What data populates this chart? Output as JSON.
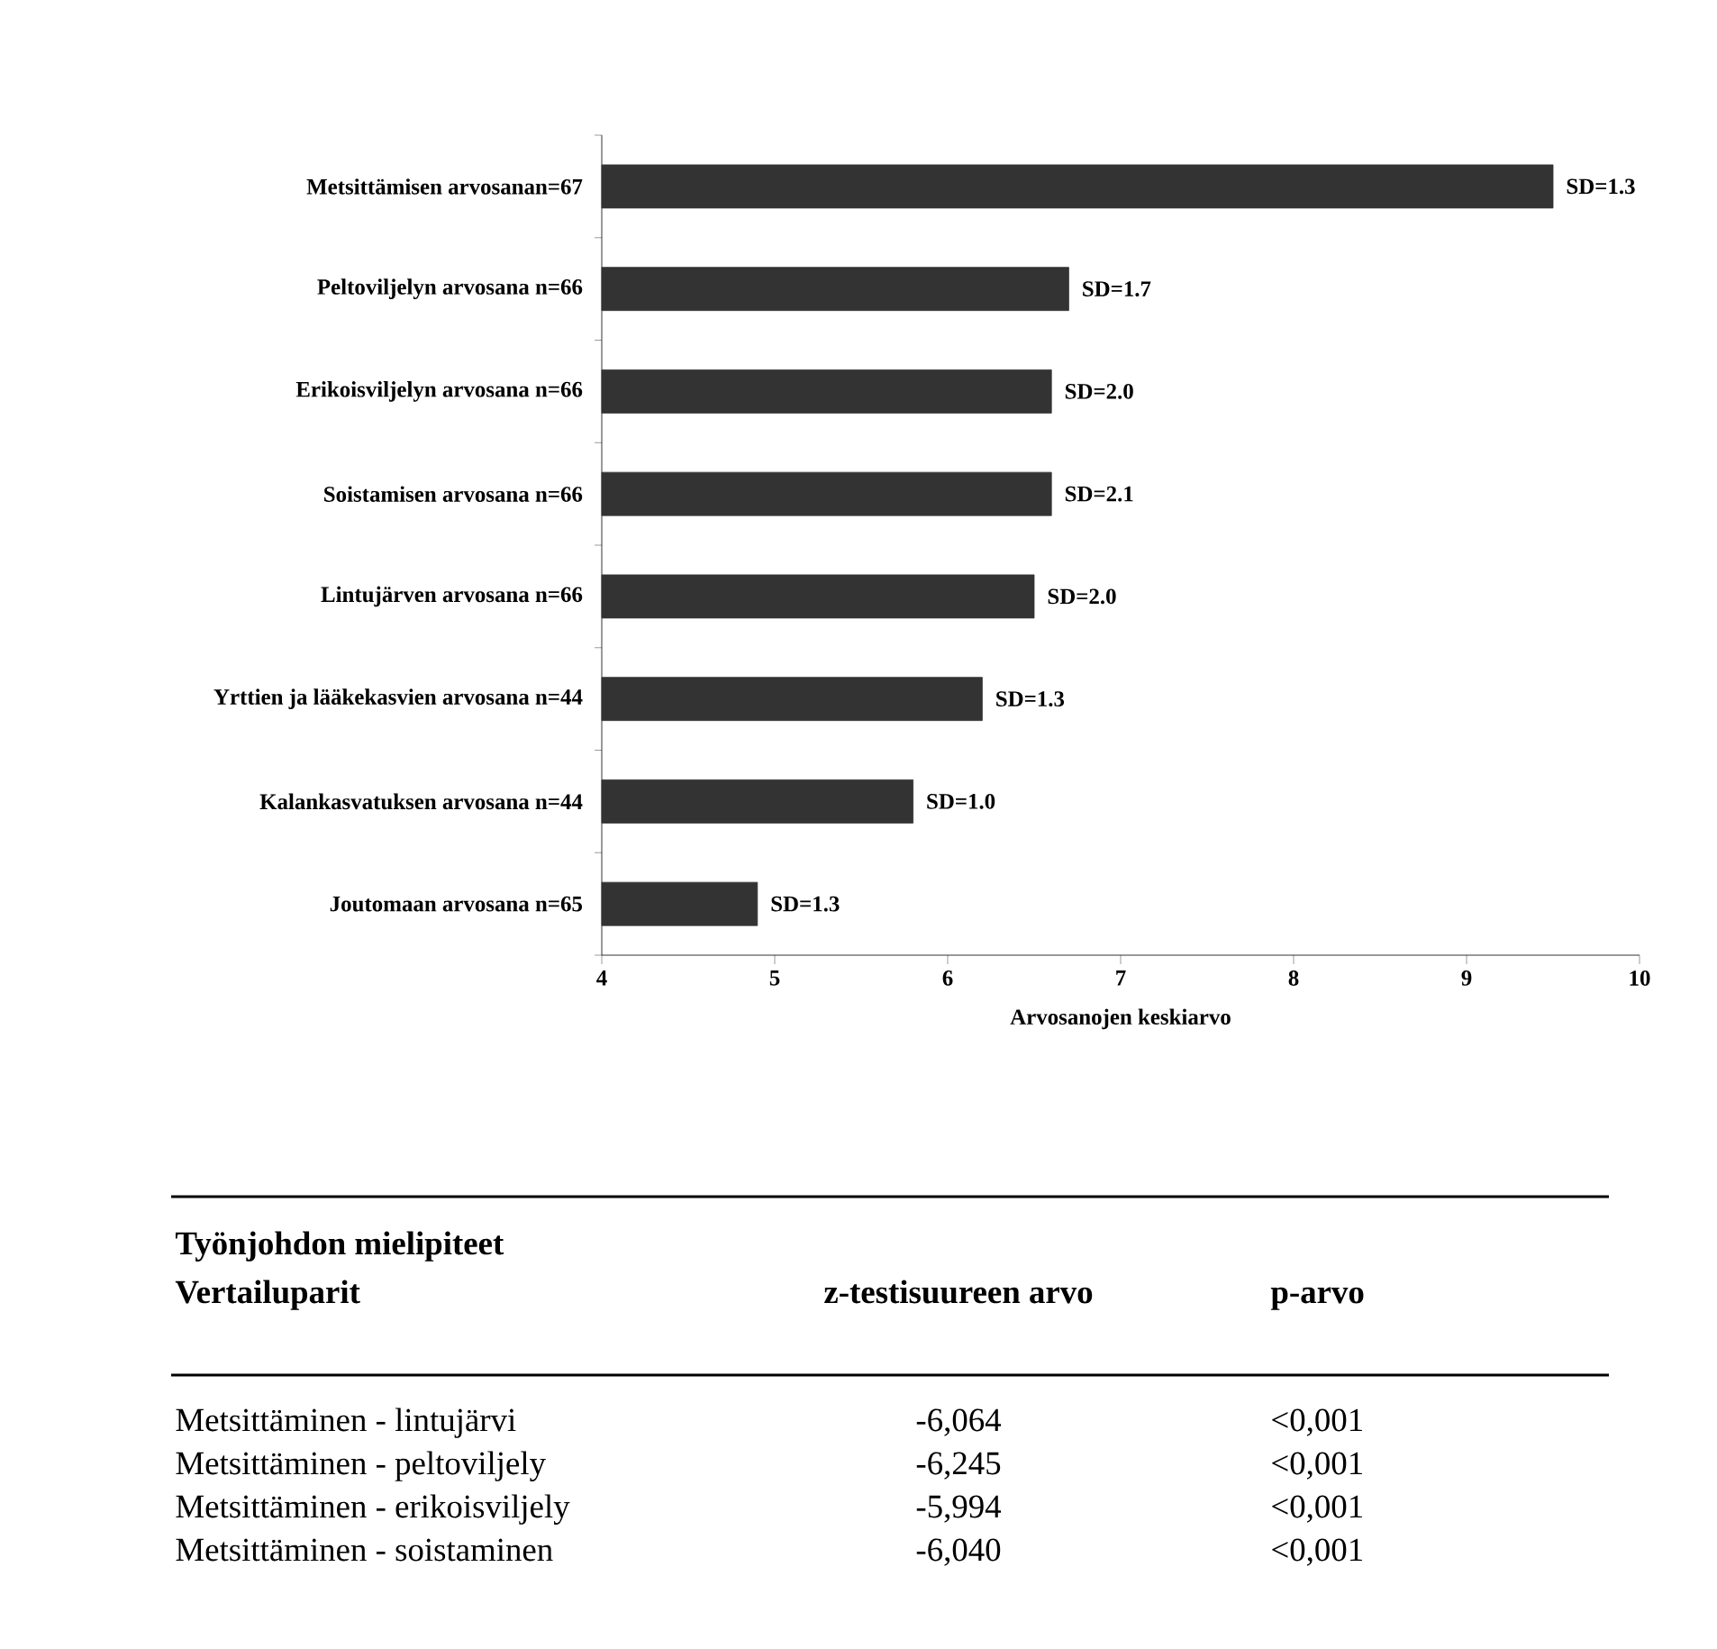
{
  "chart_data": [
    {
      "type": "bar",
      "orientation": "horizontal",
      "xlabel": "Arvosanojen keskiarvo",
      "categories": [
        "Metsittämisen arvosanan=67",
        "Peltoviljelyn arvosana n=66",
        "Erikoisviljelyn arvosana n=66",
        "Soistamisen arvosana n=66",
        "Lintujärven arvosana n=66",
        "Yrttien ja lääkekasvien arvosana n=44",
        "Kalankasvatuksen arvosana n=44",
        "Joutomaan arvosana n=65"
      ],
      "values": [
        9.5,
        6.7,
        6.6,
        6.6,
        6.5,
        6.2,
        5.8,
        4.9
      ],
      "annotations": [
        {
          "text": "SD=1.3",
          "x": 9.5,
          "y": "Metsittämisen arvosanan=67"
        },
        {
          "text": "SD=1.7",
          "x": 6.7,
          "y": "Peltoviljelyn arvosana n=66"
        },
        {
          "text": "SD=2.0",
          "x": 6.6,
          "y": "Erikoisviljelyn arvosana n=66"
        },
        {
          "text": "SD=2.1",
          "x": 6.6,
          "y": "Soistamisen arvosana n=66"
        },
        {
          "text": "SD=2.0",
          "x": 6.5,
          "y": "Lintujärven arvosana n=66"
        },
        {
          "text": "SD=1.3",
          "x": 6.2,
          "y": "Yrttien ja lääkekasvien arvosana n=44"
        },
        {
          "text": "SD=1.0",
          "x": 5.8,
          "y": "Kalankasvatuksen arvosana n=44"
        },
        {
          "text": "SD=1.3",
          "x": 4.9,
          "y": "Joutomaan arvosana n=65"
        }
      ],
      "color": "#333333",
      "xlim": [
        4,
        10
      ],
      "xticks": [
        4,
        5,
        6,
        7,
        8,
        9,
        10
      ]
    },
    {
      "type": "other",
      "annotations": [
        "Työnjohdon mielipiteet",
        "Vertailuparit",
        "z-testisuureen arvo",
        "p-arvo",
        "Metsittäminen - lintujärvi",
        "-6,064",
        "<0,001",
        "Metsittäminen - peltoviljely",
        "-6,245",
        "<0,001",
        "Metsittäminen - erikoisviljely",
        "-5,994",
        "<0,001",
        "Metsittäminen - soistaminen",
        "-6,040",
        "<0,001"
      ]
    }
  ]
}
